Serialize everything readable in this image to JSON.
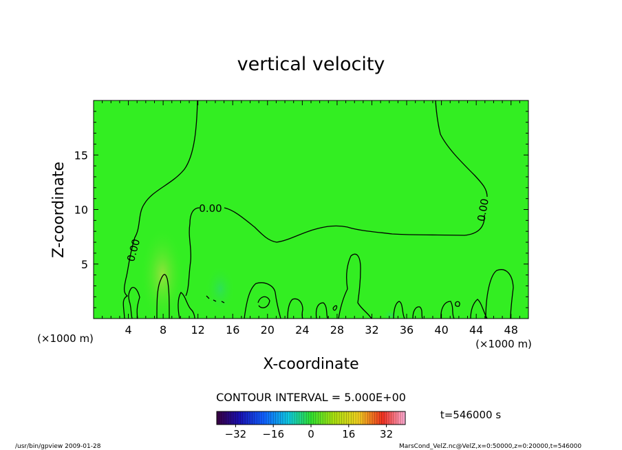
{
  "chart_data": {
    "type": "heatmap",
    "title": "vertical velocity",
    "xlabel": "X-coordinate",
    "ylabel": "Z-coordinate",
    "x_unit": "(×1000 m)",
    "y_unit": "(×1000 m)",
    "xlim": [
      0,
      50
    ],
    "ylim": [
      0,
      20
    ],
    "x_ticks": [
      4,
      8,
      12,
      16,
      20,
      24,
      28,
      32,
      36,
      40,
      44,
      48
    ],
    "y_ticks": [
      5,
      10,
      15
    ],
    "contour_interval_label": "CONTOUR INTERVAL = 5.000E+00",
    "contour_labels": [
      "0.00",
      "0.00",
      "0.00"
    ],
    "colorbar": {
      "min": -40,
      "max": 40,
      "ticks": [
        -32,
        -16,
        0,
        16,
        32
      ],
      "colormap": "rainbow (purple-blue-cyan-green-yellow-red-pink)"
    },
    "background_value": 0,
    "background_color": "#33ee22",
    "time_label": "t=546000 s",
    "footer_left": "/usr/bin/gpview  2009-01-28",
    "footer_right": "MarsCond_VelZ.nc@VelZ,x=0:50000,z=0:20000,t=546000"
  }
}
